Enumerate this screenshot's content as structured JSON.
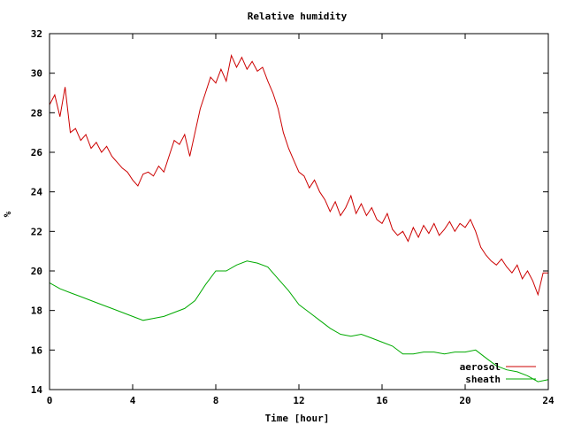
{
  "chart_data": {
    "type": "line",
    "title": "Relative humidity",
    "xlabel": "Time [hour]",
    "ylabel": "%",
    "xlim": [
      0,
      24
    ],
    "ylim": [
      14,
      32
    ],
    "x_ticks": [
      0,
      4,
      8,
      12,
      16,
      20,
      24
    ],
    "y_ticks": [
      14,
      16,
      18,
      20,
      22,
      24,
      26,
      28,
      30,
      32
    ],
    "grid": false,
    "legend_position": "bottom-right",
    "series": [
      {
        "name": "aerosol",
        "color": "#cc0000",
        "points": [
          [
            0.0,
            28.4
          ],
          [
            0.25,
            28.9
          ],
          [
            0.5,
            27.8
          ],
          [
            0.75,
            29.3
          ],
          [
            1.0,
            27.0
          ],
          [
            1.25,
            27.2
          ],
          [
            1.5,
            26.6
          ],
          [
            1.75,
            26.9
          ],
          [
            2.0,
            26.2
          ],
          [
            2.25,
            26.5
          ],
          [
            2.5,
            26.0
          ],
          [
            2.75,
            26.3
          ],
          [
            3.0,
            25.8
          ],
          [
            3.25,
            25.5
          ],
          [
            3.5,
            25.2
          ],
          [
            3.75,
            25.0
          ],
          [
            4.0,
            24.6
          ],
          [
            4.25,
            24.3
          ],
          [
            4.5,
            24.9
          ],
          [
            4.75,
            25.0
          ],
          [
            5.0,
            24.8
          ],
          [
            5.25,
            25.3
          ],
          [
            5.5,
            25.0
          ],
          [
            5.75,
            25.8
          ],
          [
            6.0,
            26.6
          ],
          [
            6.25,
            26.4
          ],
          [
            6.5,
            26.9
          ],
          [
            6.75,
            25.8
          ],
          [
            7.0,
            27.0
          ],
          [
            7.25,
            28.2
          ],
          [
            7.5,
            29.0
          ],
          [
            7.75,
            29.8
          ],
          [
            8.0,
            29.5
          ],
          [
            8.25,
            30.2
          ],
          [
            8.5,
            29.6
          ],
          [
            8.75,
            30.9
          ],
          [
            9.0,
            30.3
          ],
          [
            9.25,
            30.8
          ],
          [
            9.5,
            30.2
          ],
          [
            9.75,
            30.6
          ],
          [
            10.0,
            30.1
          ],
          [
            10.25,
            30.3
          ],
          [
            10.5,
            29.6
          ],
          [
            10.75,
            29.0
          ],
          [
            11.0,
            28.2
          ],
          [
            11.25,
            27.0
          ],
          [
            11.5,
            26.2
          ],
          [
            11.75,
            25.6
          ],
          [
            12.0,
            25.0
          ],
          [
            12.25,
            24.8
          ],
          [
            12.5,
            24.2
          ],
          [
            12.75,
            24.6
          ],
          [
            13.0,
            24.0
          ],
          [
            13.25,
            23.6
          ],
          [
            13.5,
            23.0
          ],
          [
            13.75,
            23.5
          ],
          [
            14.0,
            22.8
          ],
          [
            14.25,
            23.2
          ],
          [
            14.5,
            23.8
          ],
          [
            14.75,
            22.9
          ],
          [
            15.0,
            23.4
          ],
          [
            15.25,
            22.8
          ],
          [
            15.5,
            23.2
          ],
          [
            15.75,
            22.6
          ],
          [
            16.0,
            22.4
          ],
          [
            16.25,
            22.9
          ],
          [
            16.5,
            22.1
          ],
          [
            16.75,
            21.8
          ],
          [
            17.0,
            22.0
          ],
          [
            17.25,
            21.5
          ],
          [
            17.5,
            22.2
          ],
          [
            17.75,
            21.7
          ],
          [
            18.0,
            22.3
          ],
          [
            18.25,
            21.9
          ],
          [
            18.5,
            22.4
          ],
          [
            18.75,
            21.8
          ],
          [
            19.0,
            22.1
          ],
          [
            19.25,
            22.5
          ],
          [
            19.5,
            22.0
          ],
          [
            19.75,
            22.4
          ],
          [
            20.0,
            22.2
          ],
          [
            20.25,
            22.6
          ],
          [
            20.5,
            22.0
          ],
          [
            20.75,
            21.2
          ],
          [
            21.0,
            20.8
          ],
          [
            21.25,
            20.5
          ],
          [
            21.5,
            20.3
          ],
          [
            21.75,
            20.6
          ],
          [
            22.0,
            20.2
          ],
          [
            22.25,
            19.9
          ],
          [
            22.5,
            20.3
          ],
          [
            22.75,
            19.6
          ],
          [
            23.0,
            20.0
          ],
          [
            23.25,
            19.5
          ],
          [
            23.5,
            18.8
          ],
          [
            23.75,
            19.9
          ],
          [
            24.0,
            19.9
          ]
        ]
      },
      {
        "name": "sheath",
        "color": "#00aa00",
        "points": [
          [
            0.0,
            19.4
          ],
          [
            0.5,
            19.1
          ],
          [
            1.0,
            18.9
          ],
          [
            1.5,
            18.7
          ],
          [
            2.0,
            18.5
          ],
          [
            2.5,
            18.3
          ],
          [
            3.0,
            18.1
          ],
          [
            3.5,
            17.9
          ],
          [
            4.0,
            17.7
          ],
          [
            4.5,
            17.5
          ],
          [
            5.0,
            17.6
          ],
          [
            5.5,
            17.7
          ],
          [
            6.0,
            17.9
          ],
          [
            6.5,
            18.1
          ],
          [
            7.0,
            18.5
          ],
          [
            7.5,
            19.3
          ],
          [
            8.0,
            20.0
          ],
          [
            8.5,
            20.0
          ],
          [
            9.0,
            20.3
          ],
          [
            9.5,
            20.5
          ],
          [
            10.0,
            20.4
          ],
          [
            10.5,
            20.2
          ],
          [
            11.0,
            19.6
          ],
          [
            11.5,
            19.0
          ],
          [
            12.0,
            18.3
          ],
          [
            12.5,
            17.9
          ],
          [
            13.0,
            17.5
          ],
          [
            13.5,
            17.1
          ],
          [
            14.0,
            16.8
          ],
          [
            14.5,
            16.7
          ],
          [
            15.0,
            16.8
          ],
          [
            15.5,
            16.6
          ],
          [
            16.0,
            16.4
          ],
          [
            16.5,
            16.2
          ],
          [
            17.0,
            15.8
          ],
          [
            17.5,
            15.8
          ],
          [
            18.0,
            15.9
          ],
          [
            18.5,
            15.9
          ],
          [
            19.0,
            15.8
          ],
          [
            19.5,
            15.9
          ],
          [
            20.0,
            15.9
          ],
          [
            20.5,
            16.0
          ],
          [
            21.0,
            15.6
          ],
          [
            21.5,
            15.2
          ],
          [
            22.0,
            15.0
          ],
          [
            22.5,
            14.9
          ],
          [
            23.0,
            14.7
          ],
          [
            23.5,
            14.4
          ],
          [
            24.0,
            14.5
          ]
        ]
      }
    ]
  }
}
